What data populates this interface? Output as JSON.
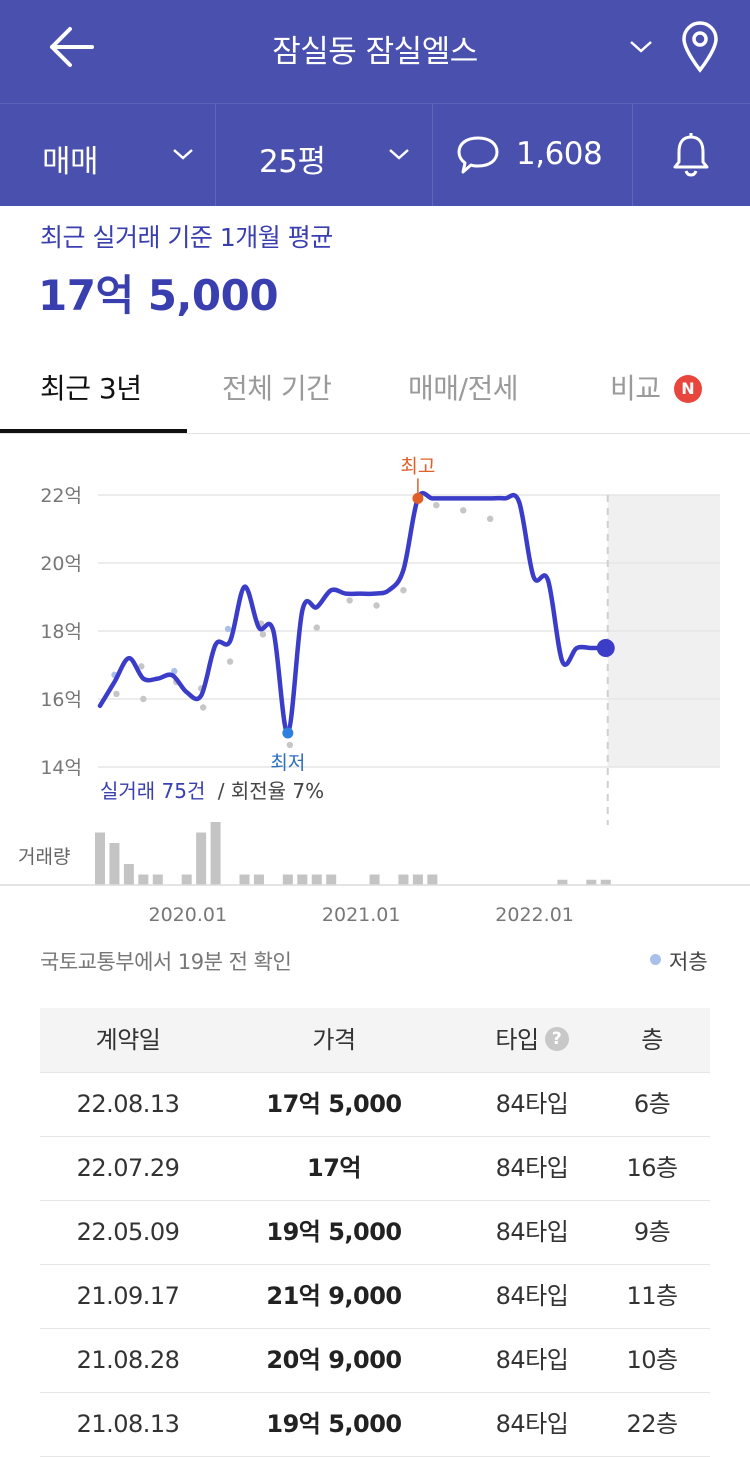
{
  "header": {
    "title": "잠실동 잠실엘스"
  },
  "subbar": {
    "trade_type": "매매",
    "size": "25평",
    "comment_count": "1,608"
  },
  "price": {
    "caption": "최근 실거래 기준 1개월 평균",
    "value": "17억 5,000"
  },
  "tabs": [
    {
      "label": "최근 3년",
      "active": true
    },
    {
      "label": "전체 기간",
      "active": false
    },
    {
      "label": "매매/전세",
      "active": false
    },
    {
      "label": "비교",
      "active": false,
      "badge": "N"
    }
  ],
  "chart_data": {
    "type": "line",
    "y_unit": "억",
    "ylim": [
      14,
      22
    ],
    "y_ticks": [
      "22억",
      "20억",
      "18억",
      "16억",
      "14억"
    ],
    "x_ticks": [
      "2020.01",
      "2021.01",
      "2022.01"
    ],
    "grid": true,
    "series": [
      {
        "values": [
          [
            "2019.09",
            15.8
          ],
          [
            "2019.10",
            16.5
          ],
          [
            "2019.11",
            17.2
          ],
          [
            "2019.12",
            16.6
          ],
          [
            "2020.01",
            16.6
          ],
          [
            "2020.02",
            16.7
          ],
          [
            "2020.03",
            16.2
          ],
          [
            "2020.04",
            16.1
          ],
          [
            "2020.05",
            17.6
          ],
          [
            "2020.06",
            17.7
          ],
          [
            "2020.07",
            19.3
          ],
          [
            "2020.08",
            18.1
          ],
          [
            "2020.09",
            18.0
          ],
          [
            "2020.10",
            15.0
          ],
          [
            "2020.11",
            18.6
          ],
          [
            "2020.12",
            18.7
          ],
          [
            "2021.01",
            19.2
          ],
          [
            "2021.02",
            19.1
          ],
          [
            "2021.03",
            19.1
          ],
          [
            "2021.04",
            19.1
          ],
          [
            "2021.05",
            19.2
          ],
          [
            "2021.06",
            19.8
          ],
          [
            "2021.07",
            21.9
          ],
          [
            "2021.08",
            21.9
          ],
          [
            "2021.09",
            21.9
          ],
          [
            "2021.10",
            21.9
          ],
          [
            "2021.11",
            21.9
          ],
          [
            "2021.12",
            21.9
          ],
          [
            "2022.01",
            21.9
          ],
          [
            "2022.02",
            21.8
          ],
          [
            "2022.03",
            19.6
          ],
          [
            "2022.04",
            19.5
          ],
          [
            "2022.05",
            17.1
          ],
          [
            "2022.06",
            17.5
          ],
          [
            "2022.07",
            17.5
          ],
          [
            "2022.08",
            17.5
          ]
        ]
      }
    ],
    "markers": {
      "high": {
        "label": "최고",
        "x": "2021.07",
        "value": 21.9
      },
      "low": {
        "label": "최저",
        "x": "2020.10",
        "value": 15.0
      }
    },
    "volume_label": "거래량",
    "volume": [
      {
        "x": "2019.09",
        "v": 5
      },
      {
        "x": "2019.10",
        "v": 4
      },
      {
        "x": "2019.11",
        "v": 2
      },
      {
        "x": "2019.12",
        "v": 1
      },
      {
        "x": "2020.01",
        "v": 1
      },
      {
        "x": "2020.03",
        "v": 1
      },
      {
        "x": "2020.04",
        "v": 5
      },
      {
        "x": "2020.05",
        "v": 6
      },
      {
        "x": "2020.07",
        "v": 1
      },
      {
        "x": "2020.08",
        "v": 1
      },
      {
        "x": "2020.10",
        "v": 1
      },
      {
        "x": "2020.11",
        "v": 1
      },
      {
        "x": "2020.12",
        "v": 1
      },
      {
        "x": "2021.01",
        "v": 1
      },
      {
        "x": "2021.04",
        "v": 1
      },
      {
        "x": "2021.06",
        "v": 1
      },
      {
        "x": "2021.07",
        "v": 1
      },
      {
        "x": "2021.08",
        "v": 1
      },
      {
        "x": "2022.05",
        "v": 0.5
      },
      {
        "x": "2022.07",
        "v": 0.5
      },
      {
        "x": "2022.08",
        "v": 0.5
      }
    ],
    "transactions_text": "실거래 75건",
    "turnover_text": "/ 회전율 7%"
  },
  "source_text": "국토교통부에서 19분 전 확인",
  "legend": {
    "label": "저층",
    "color": "#a9c1ea"
  },
  "table": {
    "headers": [
      "계약일",
      "가격",
      "타입",
      "층"
    ],
    "help_icon_glyph": "?",
    "rows": [
      [
        "22.08.13",
        "17억 5,000",
        "84타입",
        "6층"
      ],
      [
        "22.07.29",
        "17억",
        "84타입",
        "16층"
      ],
      [
        "22.05.09",
        "19억 5,000",
        "84타입",
        "9층"
      ],
      [
        "21.09.17",
        "21억 9,000",
        "84타입",
        "11층"
      ],
      [
        "21.08.28",
        "20억 9,000",
        "84타입",
        "10층"
      ],
      [
        "21.08.13",
        "19억 5,000",
        "84타입",
        "22층"
      ]
    ]
  },
  "colors": {
    "header_bg": "#4a50ad",
    "accent": "#3a3fb0",
    "line": "#3b3dc8",
    "high_marker": "#e0602a",
    "low_marker": "#2f7fe0"
  }
}
